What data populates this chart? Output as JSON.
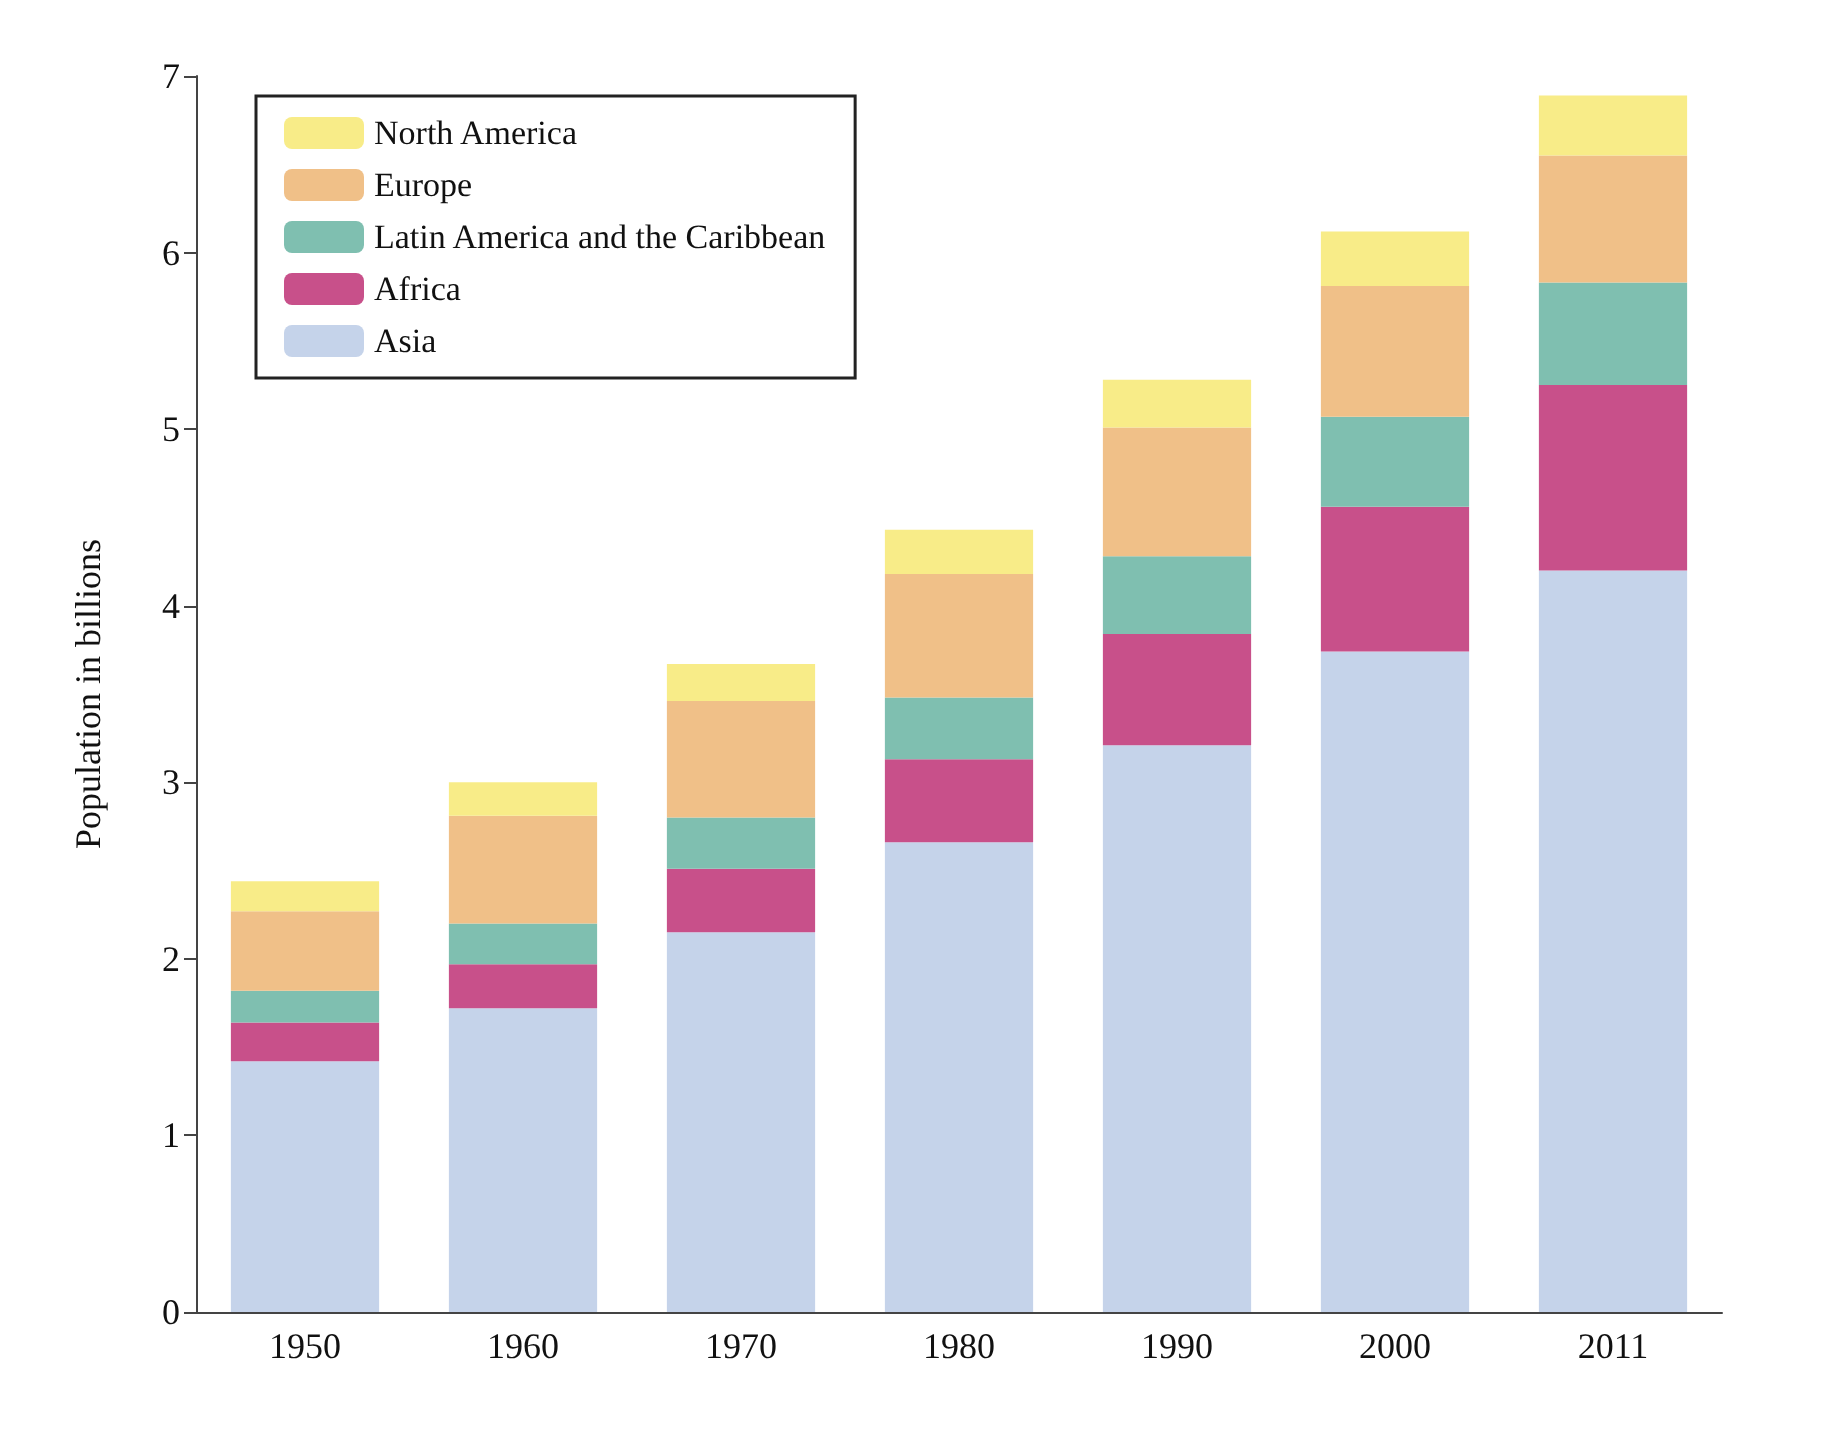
{
  "chart_data": {
    "type": "bar",
    "stacked": true,
    "ylabel": "Population in billions",
    "categories": [
      "1950",
      "1960",
      "1970",
      "1980",
      "1990",
      "2000",
      "2011"
    ],
    "series": [
      {
        "name": "Asia",
        "color": "#c5d3ea",
        "values": [
          1.42,
          1.72,
          2.15,
          2.66,
          3.21,
          3.74,
          4.2
        ]
      },
      {
        "name": "Africa",
        "color": "#c8508a",
        "values": [
          0.22,
          0.25,
          0.36,
          0.47,
          0.63,
          0.82,
          1.05
        ]
      },
      {
        "name": "Latin America and the Caribbean",
        "color": "#7fbfb0",
        "values": [
          0.18,
          0.23,
          0.29,
          0.35,
          0.44,
          0.51,
          0.58
        ]
      },
      {
        "name": "Europe",
        "color": "#f0c088",
        "values": [
          0.45,
          0.61,
          0.66,
          0.7,
          0.73,
          0.74,
          0.72
        ]
      },
      {
        "name": "North America",
        "color": "#f8ec88",
        "values": [
          0.17,
          0.19,
          0.21,
          0.25,
          0.27,
          0.31,
          0.34
        ]
      }
    ],
    "ylim": [
      0,
      7
    ],
    "yticks": [
      0,
      1,
      2,
      3,
      4,
      5,
      6,
      7
    ],
    "grid": false,
    "legend": "top left"
  }
}
